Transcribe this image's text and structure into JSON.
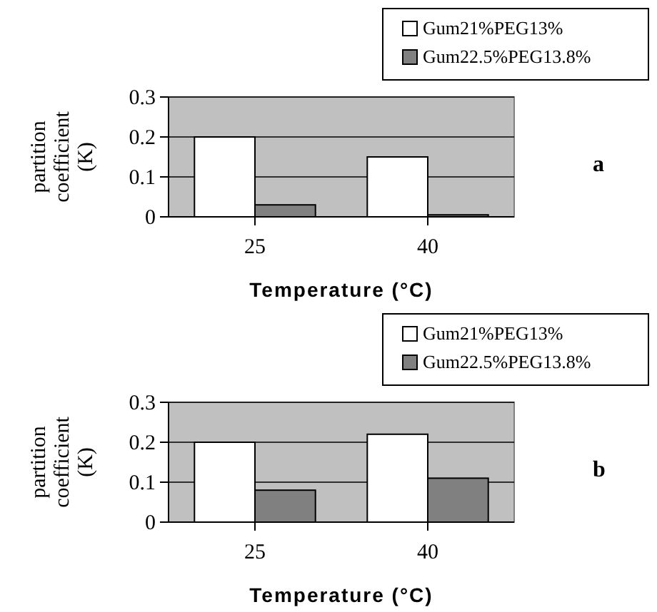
{
  "chart_data": [
    {
      "type": "bar",
      "categories": [
        "25",
        "40"
      ],
      "series": [
        {
          "name": "Gum21%PEG13%",
          "color": "#ffffff",
          "values": [
            0.2,
            0.15
          ]
        },
        {
          "name": "Gum22.5%PEG13.8%",
          "color": "#808080",
          "values": [
            0.03,
            0.005
          ]
        }
      ],
      "ylim": [
        0,
        0.3
      ],
      "yticks": [
        0,
        0.1,
        0.2,
        0.3
      ],
      "xlabel": "Temperature (°C)",
      "ylabel": "partition coefficient (K)",
      "annotations": [
        "a"
      ],
      "grid": "y",
      "legend": "top right"
    },
    {
      "type": "bar",
      "categories": [
        "25",
        "40"
      ],
      "series": [
        {
          "name": "Gum21%PEG13%",
          "color": "#ffffff",
          "values": [
            0.2,
            0.22
          ]
        },
        {
          "name": "Gum22.5%PEG13.8%",
          "color": "#808080",
          "values": [
            0.08,
            0.11
          ]
        }
      ],
      "ylim": [
        0,
        0.3
      ],
      "yticks": [
        0,
        0.1,
        0.2,
        0.3
      ],
      "xlabel": "Temperature (°C)",
      "ylabel": "partition coefficient (K)",
      "annotations": [
        "b"
      ],
      "grid": "y",
      "legend": "top right"
    }
  ]
}
